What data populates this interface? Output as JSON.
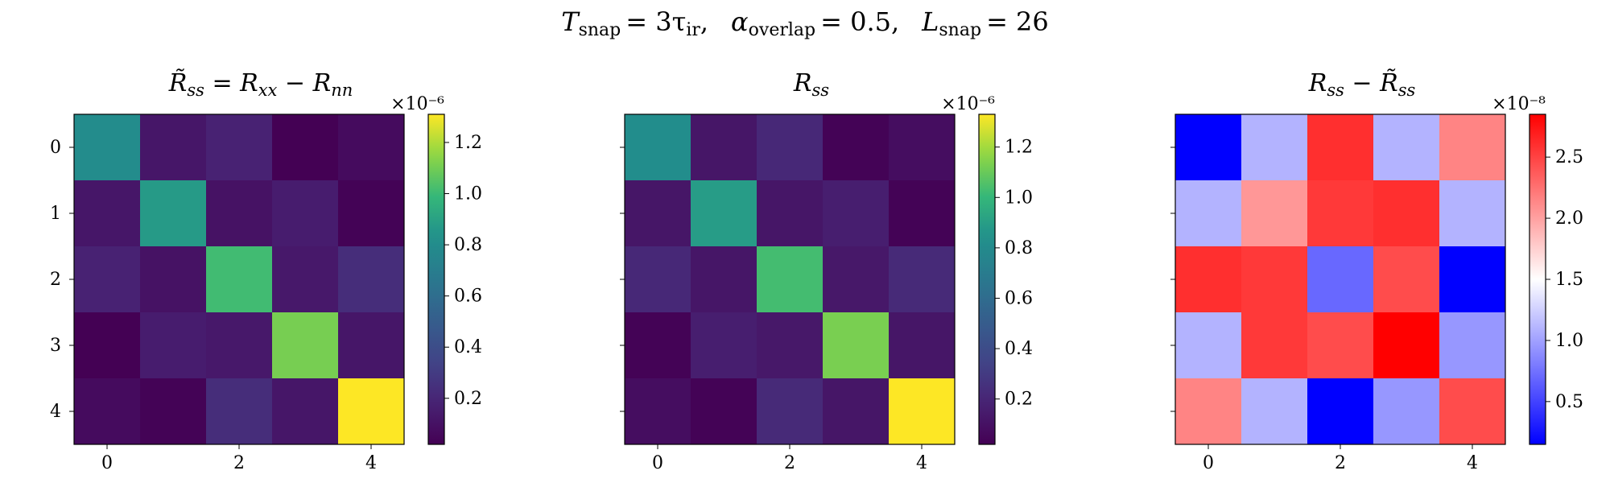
{
  "figure": {
    "suptitle": {
      "T_sym": "T",
      "T_sub": "snap",
      "T_val": "= 3τ",
      "T_val_sub": "ir",
      "alpha_sym": "α",
      "alpha_sub": "overlap",
      "alpha_val": "= 0.5,",
      "L_sym": "L",
      "L_sub": "snap",
      "L_val": "= 26"
    }
  },
  "chart_data": [
    {
      "type": "heatmap",
      "title": "R̃ss = Rxx − Rnn",
      "title_parts": {
        "pre": "R̃",
        "pre_sub": "ss",
        "mid": " = R",
        "mid_sub": "xx",
        "post": " − R",
        "post_sub": "nn"
      },
      "colormap": "viridis",
      "x_ticks": [
        0,
        2,
        4
      ],
      "y_ticks": [
        0,
        1,
        2,
        3,
        4
      ],
      "colorbar": {
        "ticks": [
          0.2,
          0.4,
          0.6,
          0.8,
          1.0,
          1.2
        ],
        "tick_labels": [
          "0.2",
          "0.4",
          "0.6",
          "0.8",
          "1.0",
          "1.2"
        ],
        "range": [
          0.02,
          1.31
        ],
        "offset": "×10⁻⁶"
      },
      "values": [
        [
          0.8,
          0.12,
          0.18,
          0.02,
          0.07
        ],
        [
          0.12,
          0.87,
          0.1,
          0.15,
          0.03
        ],
        [
          0.18,
          0.1,
          1.01,
          0.13,
          0.23
        ],
        [
          0.02,
          0.15,
          0.13,
          1.11,
          0.12
        ],
        [
          0.07,
          0.03,
          0.23,
          0.12,
          1.31
        ]
      ]
    },
    {
      "type": "heatmap",
      "title": "Rss",
      "title_parts": {
        "pre": "R",
        "pre_sub": "ss"
      },
      "colormap": "viridis",
      "x_ticks": [
        0,
        2,
        4
      ],
      "y_ticks": [
        0,
        1,
        2,
        3,
        4
      ],
      "colorbar": {
        "ticks": [
          0.2,
          0.4,
          0.6,
          0.8,
          1.0,
          1.2
        ],
        "tick_labels": [
          "0.2",
          "0.4",
          "0.6",
          "0.8",
          "1.0",
          "1.2"
        ],
        "range": [
          0.02,
          1.33
        ],
        "offset": "×10⁻⁶"
      },
      "values": [
        [
          0.82,
          0.12,
          0.21,
          0.03,
          0.08
        ],
        [
          0.12,
          0.89,
          0.12,
          0.16,
          0.03
        ],
        [
          0.21,
          0.12,
          1.03,
          0.13,
          0.22
        ],
        [
          0.03,
          0.16,
          0.13,
          1.13,
          0.12
        ],
        [
          0.08,
          0.03,
          0.22,
          0.12,
          1.33
        ]
      ]
    },
    {
      "type": "heatmap",
      "title": "Rss − R̃ss",
      "title_parts": {
        "pre": "R",
        "pre_sub": "ss",
        "mid": " − R̃",
        "mid_sub": "ss"
      },
      "colormap": "bwr",
      "x_ticks": [
        0,
        2,
        4
      ],
      "y_ticks": [
        0,
        1,
        2,
        3,
        4
      ],
      "colorbar": {
        "ticks": [
          0.5,
          1.0,
          1.5,
          2.0,
          2.5
        ],
        "tick_labels": [
          "0.5",
          "1.0",
          "1.5",
          "2.0",
          "2.5"
        ],
        "range": [
          0.15,
          2.85
        ],
        "offset": "×10⁻⁸"
      },
      "values": [
        [
          0.15,
          1.1,
          2.6,
          1.1,
          2.15
        ],
        [
          1.1,
          2.05,
          2.55,
          2.6,
          1.1
        ],
        [
          2.6,
          2.55,
          0.7,
          2.45,
          0.15
        ],
        [
          1.1,
          2.55,
          2.45,
          2.85,
          0.95
        ],
        [
          2.15,
          1.1,
          0.15,
          0.95,
          2.45
        ]
      ]
    }
  ]
}
